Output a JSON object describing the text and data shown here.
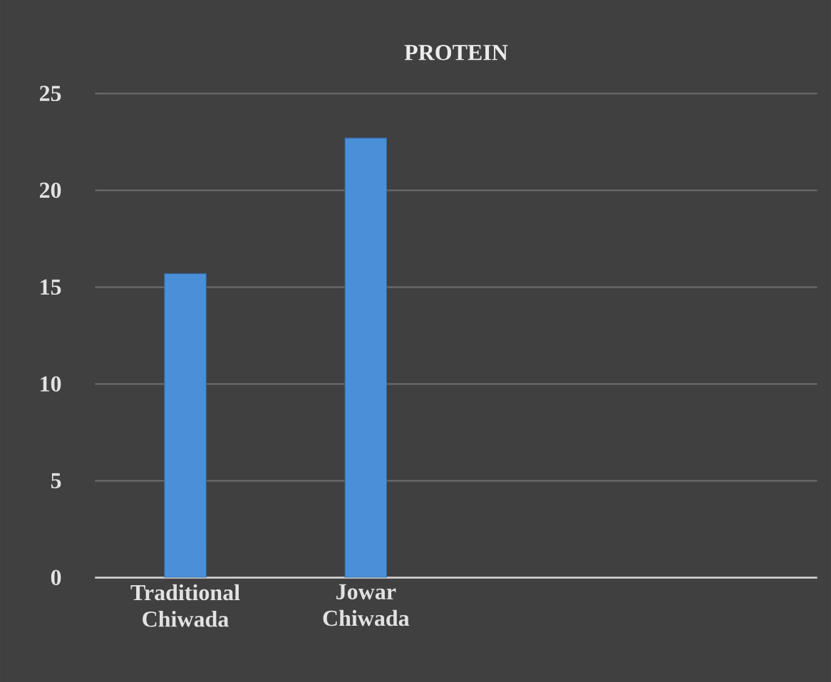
{
  "chart_data": {
    "type": "bar",
    "title": "PROTEIN",
    "categories": [
      "Traditional Chiwada",
      "Jowar Chiwada",
      null,
      null
    ],
    "values": [
      15.7,
      22.7,
      null,
      null
    ],
    "color": "#4a90d9",
    "ylim": [
      0,
      25
    ],
    "yticks": [
      0,
      5,
      10,
      15,
      20,
      25
    ],
    "grid": "y"
  }
}
